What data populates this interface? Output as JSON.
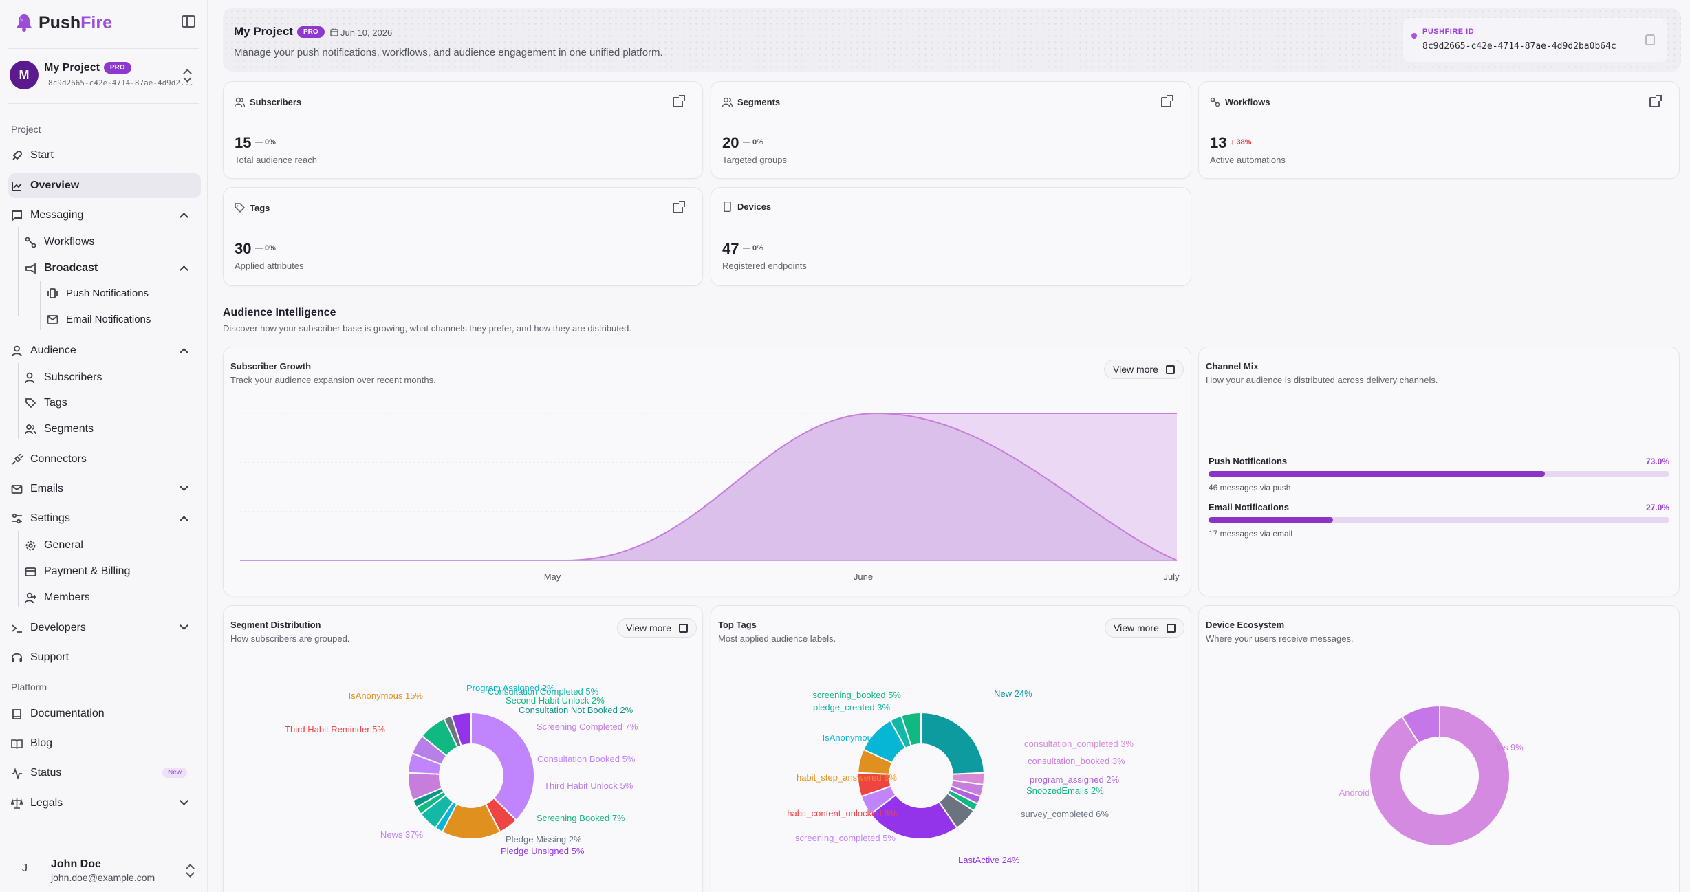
{
  "brand": {
    "name_a": "Push",
    "name_b": "Fire"
  },
  "project": {
    "name": "My Project",
    "badge": "PRO",
    "id_short": "8c9d2665-c42e-4714-87ae-4d9d2...",
    "avatar": "M"
  },
  "sidebar": {
    "section_project": "Project",
    "section_platform": "Platform",
    "items": {
      "start": "Start",
      "overview": "Overview",
      "messaging": "Messaging",
      "workflows": "Workflows",
      "broadcast": "Broadcast",
      "push": "Push Notifications",
      "email": "Email Notifications",
      "audience": "Audience",
      "subscribers": "Subscribers",
      "tags": "Tags",
      "segments": "Segments",
      "connectors": "Connectors",
      "emails": "Emails",
      "settings": "Settings",
      "general": "General",
      "billing": "Payment & Billing",
      "members": "Members",
      "developers": "Developers",
      "support": "Support",
      "documentation": "Documentation",
      "blog": "Blog",
      "status": "Status",
      "status_badge": "New",
      "legals": "Legals"
    }
  },
  "user": {
    "initial": "J",
    "name": "John Doe",
    "email": "john.doe@example.com"
  },
  "header": {
    "title": "My Project",
    "badge": "PRO",
    "date": "Jun 10, 2026",
    "subtitle": "Manage your push notifications, workflows, and audience engagement in one unified platform.",
    "pf_label": "PUSHFIRE ID",
    "pf_value": "8c9d2665-c42e-4714-87ae-4d9d2ba0b64c"
  },
  "stats": [
    {
      "title": "Subscribers",
      "value": "15",
      "delta": "— 0%",
      "sub": "Total audience reach"
    },
    {
      "title": "Segments",
      "value": "20",
      "delta": "— 0%",
      "sub": "Targeted groups"
    },
    {
      "title": "Workflows",
      "value": "13",
      "delta": "↓ 38%",
      "sub": "Active automations"
    },
    {
      "title": "Tags",
      "value": "30",
      "delta": "— 0%",
      "sub": "Applied attributes"
    },
    {
      "title": "Devices",
      "value": "47",
      "delta": "— 0%",
      "sub": "Registered endpoints"
    }
  ],
  "audience": {
    "title": "Audience Intelligence",
    "subtitle": "Discover how your subscriber base is growing, what channels they prefer, and how they are distributed."
  },
  "growth": {
    "title": "Subscriber Growth",
    "subtitle": "Track your audience expansion over recent months.",
    "view_more": "View more"
  },
  "channel": {
    "title": "Channel Mix",
    "subtitle": "How your audience is distributed across delivery channels.",
    "items": [
      {
        "name": "Push Notifications",
        "pct": "73.0%",
        "value": 0.73,
        "msg": "46 messages via push"
      },
      {
        "name": "Email Notifications",
        "pct": "27.0%",
        "value": 0.27,
        "msg": "17 messages via email"
      }
    ]
  },
  "segdist": {
    "title": "Segment Distribution",
    "subtitle": "How subscribers are grouped.",
    "view_more": "View more"
  },
  "toptags": {
    "title": "Top Tags",
    "subtitle": "Most applied audience labels.",
    "view_more": "View more"
  },
  "devices": {
    "title": "Device Ecosystem",
    "subtitle": "Where your users receive messages."
  },
  "colors": {
    "accent": "#8e38d0",
    "area": "#dcc0ec",
    "line": "#c77ddc"
  },
  "chart_data": [
    {
      "type": "area",
      "title": "Subscriber Growth",
      "categories": [
        "May",
        "June",
        "July"
      ],
      "series": []
    },
    {
      "type": "pie",
      "title": "Segment Distribution",
      "labels": [
        "News 37%",
        "Third Habit Reminder 5%",
        "IsAnonymous 15%",
        "Program Assigned 2%",
        "Consultation Completed 5%",
        "Second Habit Unlock 2%",
        "Consultation Not Booked 2%",
        "Screening Completed 7%",
        "Consultation Booked 5%",
        "Third Habit Unlock 5%",
        "Screening Booked 7%",
        "Pledge Missing 2%",
        "Pledge Unsigned 5%"
      ],
      "values": [
        37,
        5,
        15,
        2,
        5,
        2,
        2,
        7,
        5,
        5,
        7,
        2,
        5
      ],
      "colors": [
        "#c084fc",
        "#ef4444",
        "#e0901f",
        "#06b6d4",
        "#14b8a6",
        "#10b981",
        "#0d9488",
        "#c77ddc",
        "#c084fc",
        "#b77fe8",
        "#10b981",
        "#6b7280",
        "#9333ea"
      ]
    },
    {
      "type": "pie",
      "title": "Top Tags",
      "labels": [
        "New 24%",
        "consultation_completed 3%",
        "consultation_booked 3%",
        "program_assigned 2%",
        "SnoozedEmails 2%",
        "survey_completed 6%",
        "LastActive 24%",
        "screening_completed 5%",
        "habit_content_unlocked 6%",
        "habit_step_answered 6%",
        "IsAnonymous 10%",
        "pledge_created 3%",
        "screening_booked 5%"
      ],
      "values": [
        24,
        3,
        3,
        2,
        2,
        6,
        24,
        5,
        6,
        6,
        10,
        3,
        5
      ],
      "colors": [
        "#0d9ba0",
        "#d88ad8",
        "#c77ddc",
        "#b060e0",
        "#10b981",
        "#6b7280",
        "#9333ea",
        "#c084fc",
        "#ef4444",
        "#e0901f",
        "#06b6d4",
        "#14b8a6",
        "#10b981"
      ]
    },
    {
      "type": "pie",
      "title": "Device Ecosystem",
      "labels": [
        "Android 91%",
        "Ios 9%"
      ],
      "values": [
        91,
        9
      ],
      "colors": [
        "#d48ae0",
        "#c576e8"
      ]
    }
  ]
}
